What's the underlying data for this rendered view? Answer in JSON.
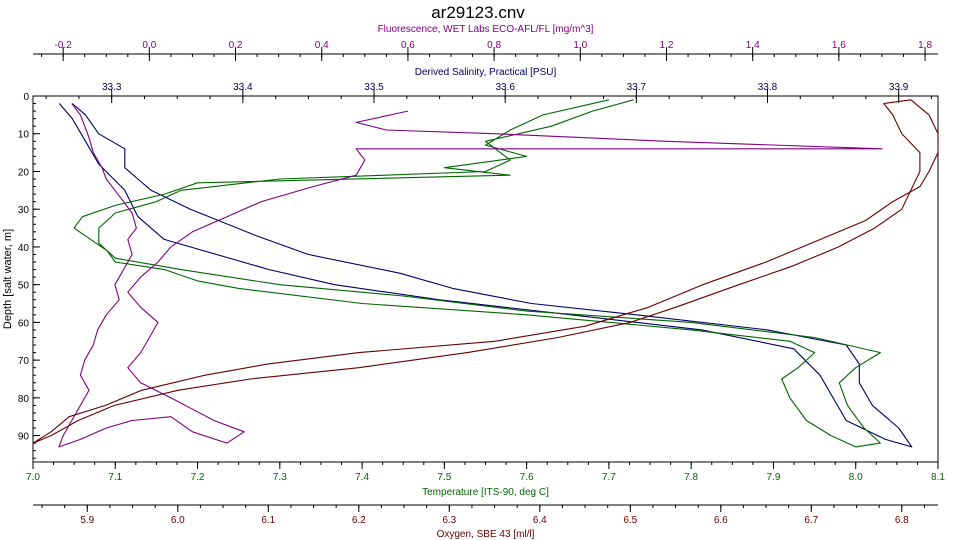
{
  "chart_data": {
    "type": "line",
    "title": "ar29123.cnv",
    "y_axis": {
      "label": "Depth [salt water, m]",
      "range": [
        0,
        97
      ],
      "inverted": true,
      "ticks": [
        0,
        10,
        20,
        30,
        40,
        50,
        60,
        70,
        80,
        90
      ]
    },
    "x_axes": [
      {
        "id": "fluorescence",
        "position": "top",
        "order": 1,
        "label": "Fluorescence, WET Labs ECO-AFL/FL [mg/m^3]",
        "color": "#800080",
        "range": [
          -0.27,
          1.83
        ],
        "ticks": [
          -0.2,
          0.0,
          0.2,
          0.4,
          0.6,
          0.8,
          1.0,
          1.2,
          1.4,
          1.6,
          1.8
        ],
        "tick_labels": [
          "-0.2",
          "0.0",
          "0.2",
          "0.4",
          "0.6",
          "0.8",
          "1.0",
          "1.2",
          "1.4",
          "1.6",
          "1.8"
        ]
      },
      {
        "id": "salinity",
        "position": "top",
        "order": 2,
        "label": "Derived Salinity, Practical [PSU]",
        "color": "#000066",
        "range": [
          33.24,
          33.93
        ],
        "ticks": [
          33.3,
          33.4,
          33.5,
          33.6,
          33.7,
          33.8,
          33.9
        ],
        "tick_labels": [
          "33.3",
          "33.4",
          "33.5",
          "33.6",
          "33.7",
          "33.8",
          "33.9"
        ]
      },
      {
        "id": "temperature",
        "position": "bottom",
        "order": 1,
        "label": "Temperature [ITS-90, deg C]",
        "color": "#006600",
        "range": [
          7.0,
          8.1
        ],
        "ticks": [
          7.0,
          7.1,
          7.2,
          7.3,
          7.4,
          7.5,
          7.6,
          7.7,
          7.8,
          7.9,
          8.0,
          8.1
        ],
        "tick_labels": [
          "7.0",
          "7.1",
          "7.2",
          "7.3",
          "7.4",
          "7.5",
          "7.6",
          "7.7",
          "7.8",
          "7.9",
          "8.0",
          "8.1"
        ]
      },
      {
        "id": "oxygen",
        "position": "bottom",
        "order": 2,
        "label": "Oxygen, SBE 43 [ml/l]",
        "color": "#660000",
        "range": [
          5.84,
          6.84
        ],
        "ticks": [
          5.9,
          6.0,
          6.1,
          6.2,
          6.3,
          6.4,
          6.5,
          6.6,
          6.7,
          6.8
        ],
        "tick_labels": [
          "5.9",
          "6.0",
          "6.1",
          "6.2",
          "6.3",
          "6.4",
          "6.5",
          "6.6",
          "6.7",
          "6.8"
        ]
      }
    ],
    "series": [
      {
        "axis": "salinity",
        "color": "#000066",
        "points": [
          [
            33.27,
            2
          ],
          [
            33.28,
            5
          ],
          [
            33.29,
            10
          ],
          [
            33.31,
            14
          ],
          [
            33.31,
            19
          ],
          [
            33.32,
            22
          ],
          [
            33.33,
            25
          ],
          [
            33.36,
            30
          ],
          [
            33.41,
            37
          ],
          [
            33.45,
            42
          ],
          [
            33.52,
            47
          ],
          [
            33.56,
            51
          ],
          [
            33.62,
            55
          ],
          [
            33.7,
            58
          ],
          [
            33.8,
            62
          ],
          [
            33.86,
            66
          ],
          [
            33.87,
            71
          ],
          [
            33.87,
            76
          ],
          [
            33.88,
            82
          ],
          [
            33.9,
            88
          ],
          [
            33.91,
            93
          ],
          [
            33.89,
            91
          ],
          [
            33.86,
            86
          ],
          [
            33.85,
            80
          ],
          [
            33.84,
            74
          ],
          [
            33.82,
            67
          ],
          [
            33.75,
            62
          ],
          [
            33.65,
            58
          ],
          [
            33.55,
            54
          ],
          [
            33.47,
            50
          ],
          [
            33.42,
            46
          ],
          [
            33.38,
            42
          ],
          [
            33.34,
            38
          ],
          [
            33.32,
            32
          ],
          [
            33.31,
            25
          ],
          [
            33.29,
            18
          ],
          [
            33.28,
            12
          ],
          [
            33.27,
            6
          ],
          [
            33.26,
            2
          ]
        ]
      },
      {
        "axis": "temperature",
        "color": "#006600",
        "points": [
          [
            7.7,
            1
          ],
          [
            7.62,
            5
          ],
          [
            7.58,
            9
          ],
          [
            7.55,
            13
          ],
          [
            7.6,
            16
          ],
          [
            7.5,
            19
          ],
          [
            7.58,
            21
          ],
          [
            7.2,
            23
          ],
          [
            7.16,
            26
          ],
          [
            7.1,
            29
          ],
          [
            7.06,
            32
          ],
          [
            7.05,
            35
          ],
          [
            7.07,
            38
          ],
          [
            7.09,
            41
          ],
          [
            7.1,
            44
          ],
          [
            7.16,
            46
          ],
          [
            7.2,
            49
          ],
          [
            7.25,
            51
          ],
          [
            7.4,
            55
          ],
          [
            7.6,
            58
          ],
          [
            7.8,
            62
          ],
          [
            7.92,
            65
          ],
          [
            7.95,
            68
          ],
          [
            7.93,
            72
          ],
          [
            7.91,
            75
          ],
          [
            7.92,
            80
          ],
          [
            7.94,
            86
          ],
          [
            7.97,
            90
          ],
          [
            8.0,
            93
          ],
          [
            8.03,
            92
          ],
          [
            8.01,
            88
          ],
          [
            7.99,
            82
          ],
          [
            7.98,
            76
          ],
          [
            8.0,
            72
          ],
          [
            8.03,
            68
          ],
          [
            7.95,
            64
          ],
          [
            7.8,
            60
          ],
          [
            7.6,
            57
          ],
          [
            7.45,
            53
          ],
          [
            7.3,
            50
          ],
          [
            7.18,
            46
          ],
          [
            7.1,
            43
          ],
          [
            7.08,
            39
          ],
          [
            7.08,
            35
          ],
          [
            7.1,
            31
          ],
          [
            7.15,
            28
          ],
          [
            7.18,
            25
          ],
          [
            7.3,
            22
          ],
          [
            7.55,
            20
          ],
          [
            7.58,
            17
          ],
          [
            7.55,
            12
          ],
          [
            7.63,
            8
          ],
          [
            7.68,
            4
          ],
          [
            7.73,
            1
          ]
        ]
      },
      {
        "axis": "fluorescence",
        "color": "#800080",
        "points": [
          [
            -0.18,
            2
          ],
          [
            -0.16,
            5
          ],
          [
            -0.15,
            8
          ],
          [
            -0.14,
            11
          ],
          [
            -0.13,
            15
          ],
          [
            -0.11,
            19
          ],
          [
            -0.1,
            22
          ],
          [
            -0.08,
            25
          ],
          [
            -0.06,
            28
          ],
          [
            -0.04,
            31
          ],
          [
            -0.03,
            35
          ],
          [
            -0.05,
            38
          ],
          [
            -0.04,
            42
          ],
          [
            -0.06,
            46
          ],
          [
            -0.08,
            50
          ],
          [
            -0.07,
            54
          ],
          [
            -0.1,
            58
          ],
          [
            -0.12,
            62
          ],
          [
            -0.13,
            66
          ],
          [
            -0.15,
            70
          ],
          [
            -0.16,
            74
          ],
          [
            -0.14,
            78
          ],
          [
            -0.16,
            82
          ],
          [
            -0.18,
            86
          ],
          [
            -0.2,
            90
          ],
          [
            -0.21,
            93
          ],
          [
            -0.16,
            91
          ],
          [
            -0.1,
            88
          ],
          [
            -0.04,
            86
          ],
          [
            0.05,
            85
          ],
          [
            0.1,
            89
          ],
          [
            0.18,
            92
          ],
          [
            0.22,
            89
          ],
          [
            0.15,
            86
          ],
          [
            0.1,
            83
          ],
          [
            0.05,
            80
          ],
          [
            -0.02,
            76
          ],
          [
            -0.05,
            72
          ],
          [
            -0.02,
            68
          ],
          [
            0.0,
            64
          ],
          [
            0.02,
            60
          ],
          [
            -0.02,
            56
          ],
          [
            -0.05,
            52
          ],
          [
            -0.02,
            48
          ],
          [
            0.02,
            44
          ],
          [
            0.05,
            40
          ],
          [
            0.1,
            36
          ],
          [
            0.18,
            32
          ],
          [
            0.26,
            28
          ],
          [
            0.38,
            24
          ],
          [
            0.48,
            21
          ],
          [
            0.5,
            17
          ],
          [
            0.48,
            14
          ],
          [
            0.6,
            14
          ],
          [
            1.7,
            14
          ],
          [
            1.2,
            12
          ],
          [
            0.8,
            10
          ],
          [
            0.55,
            9
          ],
          [
            0.48,
            7
          ],
          [
            0.6,
            4
          ]
        ]
      },
      {
        "axis": "oxygen",
        "color": "#660000",
        "points": [
          [
            5.84,
            92
          ],
          [
            5.86,
            90
          ],
          [
            5.89,
            86
          ],
          [
            5.93,
            82
          ],
          [
            6.0,
            78
          ],
          [
            6.08,
            75
          ],
          [
            6.2,
            72
          ],
          [
            6.32,
            68
          ],
          [
            6.42,
            64
          ],
          [
            6.5,
            60
          ],
          [
            6.55,
            56
          ],
          [
            6.62,
            50
          ],
          [
            6.68,
            45
          ],
          [
            6.73,
            40
          ],
          [
            6.77,
            35
          ],
          [
            6.8,
            30
          ],
          [
            6.81,
            25
          ],
          [
            6.82,
            20
          ],
          [
            6.82,
            15
          ],
          [
            6.8,
            10
          ],
          [
            6.79,
            5
          ],
          [
            6.78,
            2
          ],
          [
            6.81,
            1
          ],
          [
            6.83,
            5
          ],
          [
            6.84,
            10
          ],
          [
            6.84,
            15
          ],
          [
            6.83,
            20
          ],
          [
            6.82,
            24
          ],
          [
            6.79,
            28
          ],
          [
            6.76,
            33
          ],
          [
            6.71,
            38
          ],
          [
            6.65,
            44
          ],
          [
            6.58,
            50
          ],
          [
            6.52,
            56
          ],
          [
            6.45,
            61
          ],
          [
            6.35,
            65
          ],
          [
            6.2,
            68
          ],
          [
            6.1,
            71
          ],
          [
            6.03,
            74
          ],
          [
            5.96,
            78
          ],
          [
            5.92,
            82
          ],
          [
            5.88,
            85
          ],
          [
            5.86,
            89
          ],
          [
            5.84,
            92
          ]
        ]
      }
    ]
  }
}
